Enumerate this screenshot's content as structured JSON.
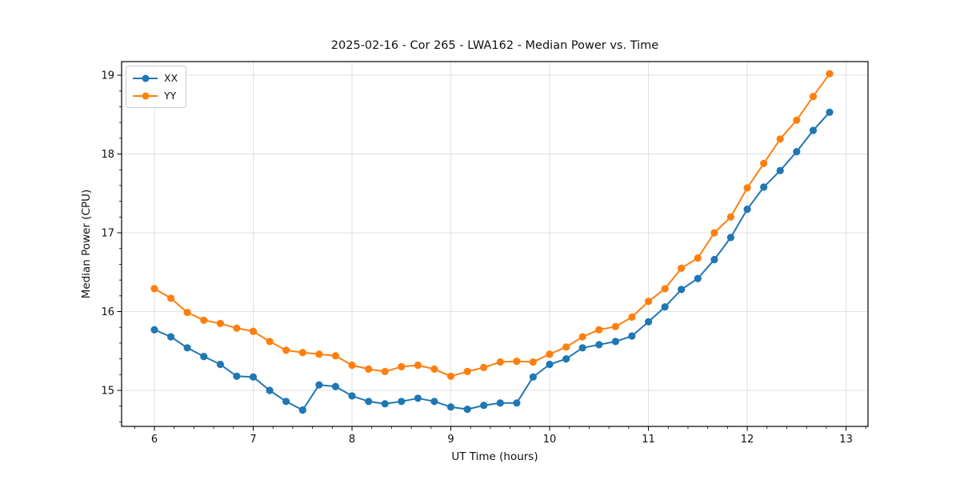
{
  "chart_data": {
    "type": "line",
    "title": "2025-02-16 - Cor 265 - LWA162 - Median Power vs. Time",
    "xlabel": "UT Time (hours)",
    "ylabel": "Median Power (CPU)",
    "xlim": [
      5.668,
      13.222
    ],
    "ylim": [
      14.543,
      19.173
    ],
    "xticks": [
      6,
      7,
      8,
      9,
      10,
      11,
      12,
      13
    ],
    "yticks": [
      15,
      16,
      17,
      18,
      19
    ],
    "minor_tick_step": 0.2,
    "grid": true,
    "grid_color": "#e0e0e0",
    "spine_color": "#000000",
    "legend_position": "upper left",
    "x": [
      6.0,
      6.167,
      6.333,
      6.5,
      6.667,
      6.833,
      7.0,
      7.167,
      7.333,
      7.5,
      7.667,
      7.833,
      8.0,
      8.167,
      8.333,
      8.5,
      8.667,
      8.833,
      9.0,
      9.167,
      9.333,
      9.5,
      9.667,
      9.833,
      10.0,
      10.167,
      10.333,
      10.5,
      10.667,
      10.833,
      11.0,
      11.167,
      11.333,
      11.5,
      11.667,
      11.833,
      12.0,
      12.167,
      12.333,
      12.5,
      12.667,
      12.833
    ],
    "series": [
      {
        "name": "XX",
        "color": "#1f77b4",
        "values": [
          15.77,
          15.68,
          15.54,
          15.43,
          15.33,
          15.18,
          15.17,
          15.0,
          14.86,
          14.75,
          15.07,
          15.05,
          14.93,
          14.86,
          14.83,
          14.86,
          14.9,
          14.86,
          14.79,
          14.76,
          14.81,
          14.84,
          14.84,
          15.17,
          15.33,
          15.4,
          15.54,
          15.58,
          15.62,
          15.69,
          15.87,
          16.06,
          16.28,
          16.42,
          16.66,
          16.94,
          17.3,
          17.58,
          17.79,
          18.03,
          18.3,
          18.53
        ]
      },
      {
        "name": "YY",
        "color": "#ff7f0e",
        "values": [
          16.29,
          16.17,
          15.99,
          15.89,
          15.85,
          15.79,
          15.75,
          15.62,
          15.51,
          15.48,
          15.46,
          15.44,
          15.32,
          15.27,
          15.24,
          15.3,
          15.32,
          15.27,
          15.18,
          15.24,
          15.29,
          15.36,
          15.37,
          15.36,
          15.46,
          15.55,
          15.68,
          15.77,
          15.81,
          15.93,
          16.13,
          16.29,
          16.55,
          16.68,
          17.0,
          17.2,
          17.57,
          17.88,
          18.19,
          18.43,
          18.73,
          19.02
        ]
      }
    ]
  }
}
